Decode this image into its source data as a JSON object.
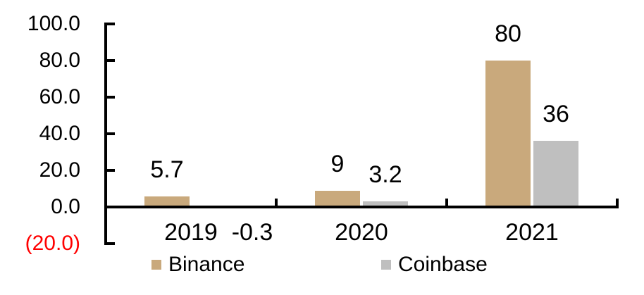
{
  "chart_data": {
    "type": "bar",
    "title": "",
    "categories": [
      "2019",
      "2020",
      "2021"
    ],
    "series": [
      {
        "name": "Binance",
        "color": "#C9A97C",
        "values": [
          5.7,
          9,
          80
        ],
        "data_labels": [
          "5.7",
          "9",
          "80"
        ]
      },
      {
        "name": "Coinbase",
        "color": "#BFBFBF",
        "values": [
          -0.3,
          3.2,
          36
        ],
        "data_labels": [
          "-0.3",
          "3.2",
          "36"
        ]
      }
    ],
    "xlabel": "",
    "ylabel": "",
    "ylim": [
      -20,
      100
    ],
    "y_axis": {
      "tick_labels": [
        "100.0",
        "80.0",
        "60.0",
        "40.0",
        "20.0",
        "0.0",
        "(20.0)"
      ],
      "tick_values": [
        100,
        80,
        60,
        40,
        20,
        0,
        -20
      ],
      "label_color": "#000000",
      "negative_label_color": "#FF0000"
    },
    "grid": false,
    "axis_color": "#000000",
    "legend_position": "bottom"
  }
}
